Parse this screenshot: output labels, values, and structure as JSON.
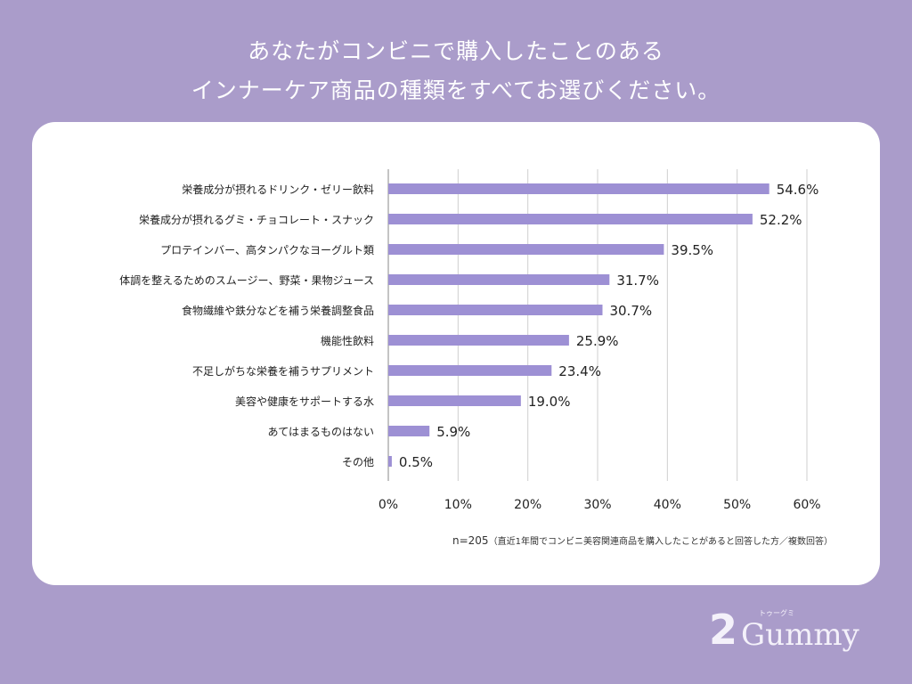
{
  "title_lines": [
    "あなたがコンビニで購入したことのある",
    "インナーケア商品の種類をすべてお選びください。"
  ],
  "chart_data": {
    "type": "bar",
    "orientation": "horizontal",
    "categories": [
      "栄養成分が摂れるドリンク・ゼリー飲料",
      "栄養成分が摂れるグミ・チョコレート・スナック",
      "プロテインバー、高タンパクなヨーグルト類",
      "体調を整えるためのスムージー、野菜・果物ジュース",
      "食物繊維や鉄分などを補う栄養調整食品",
      "機能性飲料",
      "不足しがちな栄養を補うサプリメント",
      "美容や健康をサポートする水",
      "あてはまるものはない",
      "その他"
    ],
    "values": [
      54.6,
      52.2,
      39.5,
      31.7,
      30.7,
      25.9,
      23.4,
      19.0,
      5.9,
      0.5
    ],
    "data_labels": [
      "54.6%",
      "52.2%",
      "39.5%",
      "31.7%",
      "30.7%",
      "25.9%",
      "23.4%",
      "19.0%",
      "5.9%",
      "0.5%"
    ],
    "xlim": [
      0,
      60
    ],
    "xticks": [
      "0%",
      "10%",
      "20%",
      "30%",
      "40%",
      "50%",
      "60%"
    ],
    "grid": true,
    "bar_color": "#9d90d4"
  },
  "footnote": {
    "n": "n=205",
    "note": "（直近1年間でコンビニ美容関連商品を購入したことがあると回答した方／複数回答）"
  },
  "logo": {
    "number": "2",
    "word": "Gummy",
    "ruby": "トゥーグミ"
  },
  "colors": {
    "background": "#aa9cca",
    "card": "#ffffff"
  }
}
